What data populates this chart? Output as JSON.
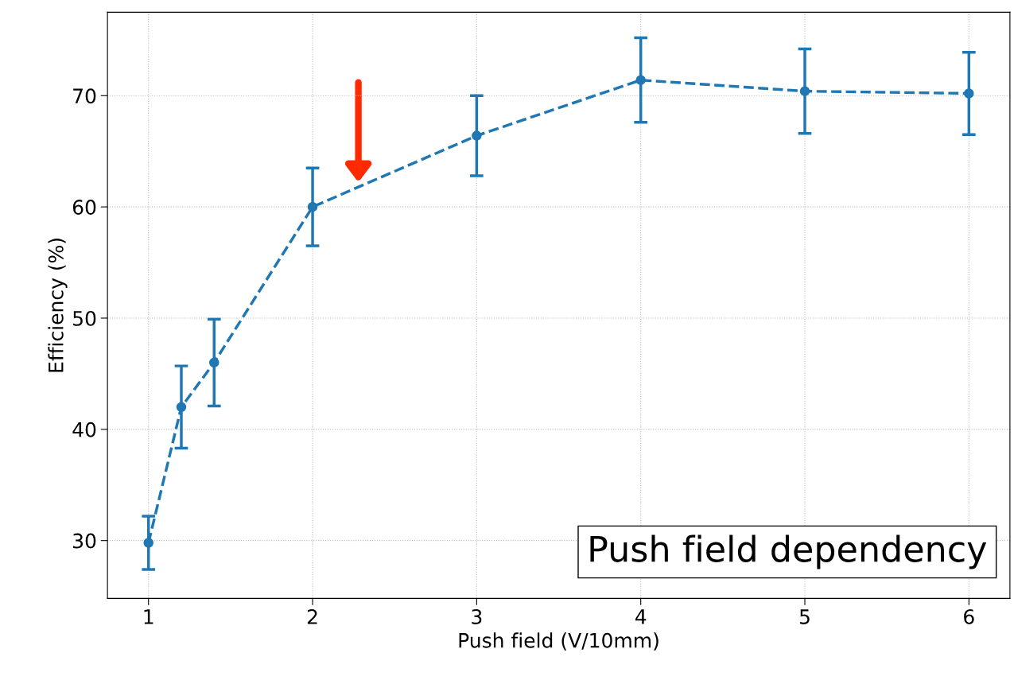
{
  "chart_data": {
    "type": "line",
    "xlabel": "Push field (V/10mm)",
    "ylabel": "Efficiency (%)",
    "x": [
      1,
      1.2,
      1.4,
      2,
      3,
      4,
      5,
      6
    ],
    "series": [
      {
        "color": "#1f77b4",
        "values": [
          29.8,
          42,
          46,
          60,
          66.4,
          71.4,
          70.4,
          70.2
        ],
        "errors": [
          2.4,
          3.7,
          3.9,
          3.5,
          3.6,
          3.8,
          3.8,
          3.7
        ]
      }
    ],
    "xlim": [
      0.75,
      6.25
    ],
    "ylim": [
      24.8,
      77.5
    ],
    "xticks": [
      1,
      2,
      3,
      4,
      5,
      6
    ],
    "yticks": [
      30,
      40,
      50,
      60,
      70
    ],
    "grid": true,
    "marker": "circle",
    "line_style": "dashed",
    "annotations": [
      "Push field dependency"
    ]
  }
}
